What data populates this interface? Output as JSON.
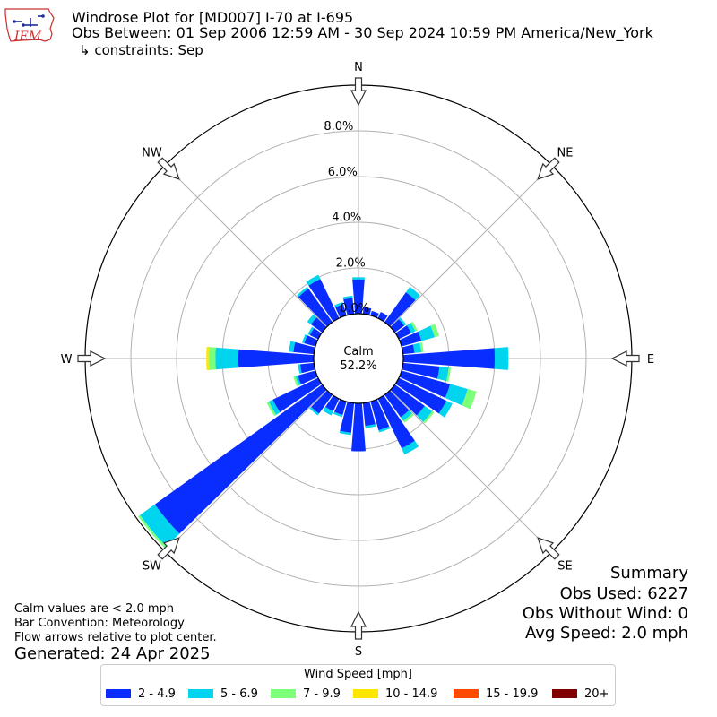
{
  "logo": {
    "text": "IEM",
    "icon": "iowa-state-outline-icon"
  },
  "title": {
    "line1": "Windrose Plot for [MD007] I-70 at I-695",
    "line2": "Obs Between: 01 Sep 2006 12:59 AM - 30 Sep 2024 10:59 PM America/New_York",
    "line3": "↳ constraints: Sep"
  },
  "notes": {
    "calm": "Calm values are < 2.0 mph",
    "bar": "Bar Convention: Meteorology",
    "flow": "Flow arrows relative to plot center.",
    "generated": "Generated: 24 Apr 2025"
  },
  "summary": {
    "title": "Summary",
    "obs_used": "Obs Used: 6227",
    "obs_without_wind": "Obs Without Wind: 0",
    "avg_speed": "Avg Speed: 2.0 mph"
  },
  "chart_data": {
    "type": "windrose",
    "calm_label": "Calm",
    "calm_value": "52.2%",
    "radial_ticks": [
      0,
      2,
      4,
      6,
      8
    ],
    "radial_tick_labels": [
      "0.0%",
      "2.0%",
      "4.0%",
      "6.0%",
      "8.0%"
    ],
    "rmax": 10,
    "direction_labels": [
      {
        "label": "N",
        "deg": 0
      },
      {
        "label": "NE",
        "deg": 45
      },
      {
        "label": "E",
        "deg": 90
      },
      {
        "label": "SE",
        "deg": 135
      },
      {
        "label": "S",
        "deg": 180
      },
      {
        "label": "SW",
        "deg": 225
      },
      {
        "label": "W",
        "deg": 270
      },
      {
        "label": "NW",
        "deg": 315
      }
    ],
    "legend_title": "Wind Speed [mph]",
    "bins": [
      {
        "label": "2 - 4.9",
        "color": "#0a2dff"
      },
      {
        "label": "5 - 6.9",
        "color": "#00d4ee"
      },
      {
        "label": "7 - 9.9",
        "color": "#7cff79"
      },
      {
        "label": "10 - 14.9",
        "color": "#ffe600"
      },
      {
        "label": "15 - 19.9",
        "color": "#ff4a00"
      },
      {
        "label": "20+",
        "color": "#800000"
      }
    ],
    "directions_deg": [
      0,
      10,
      20,
      30,
      40,
      50,
      60,
      70,
      80,
      90,
      100,
      110,
      120,
      130,
      140,
      150,
      160,
      170,
      180,
      190,
      200,
      210,
      220,
      230,
      240,
      250,
      260,
      270,
      280,
      290,
      300,
      310,
      320,
      330,
      340,
      350
    ],
    "cumulative": [
      [
        1.5,
        1.6,
        1.6,
        1.6,
        1.6,
        1.6
      ],
      [
        0.3,
        0.3,
        0.3,
        0.3,
        0.3,
        0.3
      ],
      [
        0.2,
        0.2,
        0.2,
        0.2,
        0.2,
        0.2
      ],
      [
        0.3,
        0.3,
        0.3,
        0.3,
        0.3,
        0.3
      ],
      [
        1.6,
        1.9,
        1.9,
        1.9,
        1.9,
        1.9
      ],
      [
        0.5,
        0.6,
        0.6,
        0.6,
        0.6,
        0.6
      ],
      [
        0.6,
        0.8,
        0.9,
        0.9,
        0.9,
        0.9
      ],
      [
        0.9,
        1.5,
        1.7,
        1.7,
        1.7,
        1.7
      ],
      [
        0.5,
        0.8,
        0.9,
        0.9,
        0.9,
        0.9
      ],
      [
        4.0,
        4.6,
        4.6,
        4.6,
        4.6,
        4.6
      ],
      [
        1.6,
        2.0,
        2.1,
        2.1,
        2.1,
        2.1
      ],
      [
        2.2,
        3.0,
        3.4,
        3.4,
        3.4,
        3.4
      ],
      [
        2.3,
        2.6,
        2.6,
        2.6,
        2.6,
        2.6
      ],
      [
        1.6,
        2.0,
        2.1,
        2.1,
        2.1,
        2.1
      ],
      [
        1.2,
        1.4,
        1.5,
        1.5,
        1.5,
        1.5
      ],
      [
        2.4,
        2.7,
        2.7,
        2.7,
        2.7,
        2.7
      ],
      [
        1.3,
        1.4,
        1.4,
        1.4,
        1.4,
        1.4
      ],
      [
        1.0,
        1.1,
        1.1,
        1.1,
        1.1,
        1.1
      ],
      [
        2.1,
        2.1,
        2.1,
        2.1,
        2.1,
        2.1
      ],
      [
        1.3,
        1.4,
        1.4,
        1.4,
        1.4,
        1.4
      ],
      [
        0.6,
        0.7,
        0.7,
        0.7,
        0.7,
        0.7
      ],
      [
        0.6,
        0.8,
        0.8,
        0.8,
        0.8,
        0.8
      ],
      [
        1.0,
        1.1,
        1.1,
        1.1,
        1.1,
        1.1
      ],
      [
        9.0,
        9.8,
        9.9,
        9.9,
        9.9,
        9.9
      ],
      [
        2.2,
        2.4,
        2.5,
        2.5,
        2.5,
        2.5
      ],
      [
        0.8,
        0.9,
        1.0,
        1.0,
        1.0,
        1.0
      ],
      [
        0.6,
        0.7,
        0.7,
        0.7,
        0.7,
        0.7
      ],
      [
        3.3,
        4.3,
        4.6,
        4.7,
        4.7,
        4.7
      ],
      [
        0.9,
        1.1,
        1.1,
        1.1,
        1.1,
        1.1
      ],
      [
        0.5,
        0.6,
        0.6,
        0.6,
        0.6,
        0.6
      ],
      [
        0.4,
        0.5,
        0.5,
        0.5,
        0.5,
        0.5
      ],
      [
        0.6,
        0.8,
        0.8,
        0.8,
        0.8,
        0.8
      ],
      [
        1.8,
        1.9,
        1.9,
        1.9,
        1.9,
        1.9
      ],
      [
        1.9,
        2.1,
        2.1,
        2.1,
        2.1,
        2.1
      ],
      [
        0.5,
        0.6,
        0.6,
        0.6,
        0.6,
        0.6
      ],
      [
        0.7,
        0.8,
        0.8,
        0.8,
        0.8,
        0.8
      ]
    ]
  }
}
